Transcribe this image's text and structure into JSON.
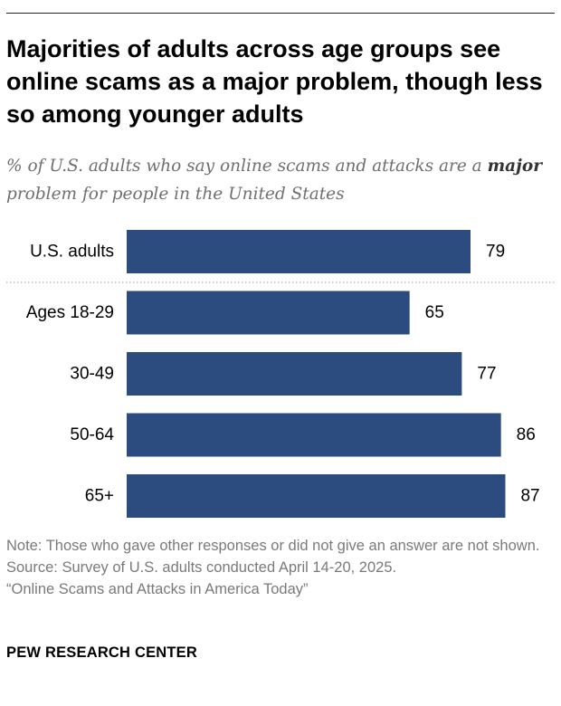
{
  "title": "Majorities of adults across age groups see online scams as a major problem, though less so among younger adults",
  "subtitle": {
    "prefix": "% of U.S. adults who say online scams and attacks are a ",
    "emphasis": "major",
    "suffix": " problem for people in the United States"
  },
  "chart_data": {
    "type": "bar",
    "orientation": "horizontal",
    "categories": [
      "U.S. adults",
      "Ages 18-29",
      "30-49",
      "50-64",
      "65+"
    ],
    "values": [
      79,
      65,
      77,
      86,
      87
    ],
    "title": "",
    "xlabel": "",
    "ylabel": "",
    "xlim": [
      0,
      100
    ],
    "grid": false,
    "legend": "none",
    "bar_color": "#2c4b7f",
    "divider_after_index": 0
  },
  "footer": {
    "note": "Note: Those who gave other responses or did not give an answer are not shown.",
    "source": "Source: Survey of U.S. adults conducted April 14-20, 2025.",
    "report": "“Online Scams and Attacks in America Today”",
    "brand": "PEW RESEARCH CENTER"
  }
}
